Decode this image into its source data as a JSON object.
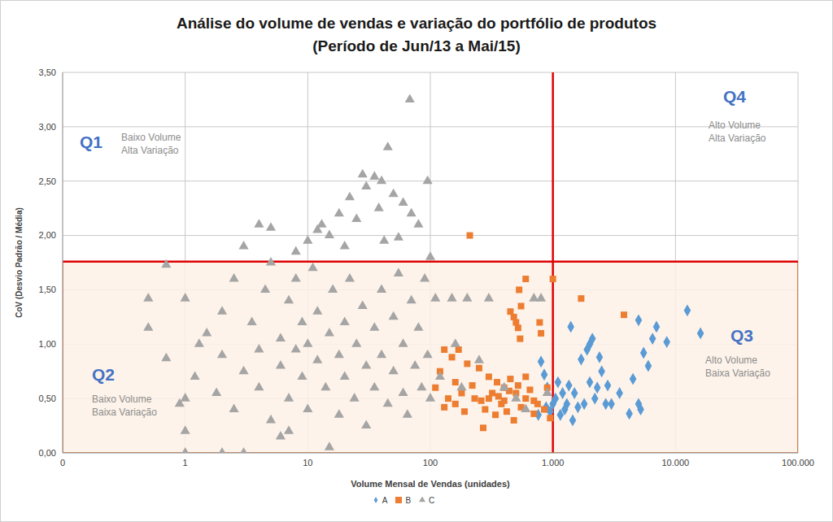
{
  "chart_data": {
    "type": "scatter",
    "title": [
      "Análise do volume de vendas e variação do portfólio de produtos",
      "(Período de Jun/13 a Mai/15)"
    ],
    "x_label": "Volume Mensal de Vendas (unidades)",
    "y_label": "CoV (Desvio Padrão / Média)",
    "log": "x",
    "grid": true,
    "legend": "bottom",
    "xlim": [
      0.1,
      100000
    ],
    "xticks": [
      {
        "value": 0.1,
        "label": "0"
      },
      1,
      10,
      100,
      {
        "value": 1000,
        "label": "1.000"
      },
      {
        "value": 10000,
        "label": "10.000"
      },
      {
        "value": 100000,
        "label": "100.000"
      }
    ],
    "ylim": [
      0,
      3.5
    ],
    "yticks": [
      {
        "value": 0,
        "label": "0,00"
      },
      {
        "value": 0.5,
        "label": "0,50"
      },
      {
        "value": 1,
        "label": "1,00"
      },
      {
        "value": 1.5,
        "label": "1,50"
      },
      {
        "value": 2,
        "label": "2,00"
      },
      {
        "value": 2.5,
        "label": "2,50"
      },
      {
        "value": 3,
        "label": "3,00"
      },
      {
        "value": 3.5,
        "label": "3,50"
      }
    ],
    "thresholds": {
      "x": 1000,
      "y": 1.76
    },
    "annotations": [
      {
        "label": "Q1",
        "text": [
          "Baixo Volume",
          "Alta Variação"
        ]
      },
      {
        "label": "Q2",
        "text": [
          "Baixo Volume",
          "Baixa Variação"
        ]
      },
      {
        "label": "Q3",
        "text": [
          "Alto Volume",
          "Baixa Variação"
        ]
      },
      {
        "label": "Q4",
        "text": [
          "Alto Volume",
          "Alta Variação"
        ]
      }
    ],
    "series": [
      {
        "name": "A",
        "color": "#5b9bd5",
        "marker": "diamond",
        "x": [
          16000,
          12500,
          5000,
          7000,
          6500,
          8500,
          5500,
          6000,
          4500,
          5000,
          5200,
          4200,
          2000,
          2100,
          1900,
          1400,
          1700,
          2400,
          2500,
          2800,
          2200,
          2700,
          1800,
          2000,
          800,
          850,
          900,
          1100,
          1200,
          1300,
          1500,
          1000,
          950,
          1150,
          1250,
          1600,
          3000,
          1050,
          880,
          1350,
          760,
          1450,
          2300,
          3500
        ],
        "y": [
          1.1,
          1.31,
          1.22,
          1.16,
          1.05,
          1.02,
          0.92,
          0.8,
          0.68,
          0.45,
          0.4,
          0.36,
          1.0,
          1.05,
          0.95,
          1.16,
          0.86,
          0.88,
          0.75,
          0.62,
          0.5,
          0.45,
          0.45,
          0.65,
          0.84,
          0.72,
          0.6,
          0.65,
          0.55,
          0.45,
          0.55,
          0.45,
          0.38,
          0.35,
          0.4,
          0.42,
          0.45,
          0.5,
          0.42,
          0.62,
          0.35,
          0.3,
          0.6,
          0.55
        ]
      },
      {
        "name": "B",
        "color": "#ed7d31",
        "marker": "square",
        "x": [
          210,
          1000,
          600,
          530,
          550,
          450,
          480,
          500,
          520,
          540,
          1700,
          3800,
          780,
          800,
          130,
          150,
          170,
          200,
          120,
          250,
          300,
          350,
          400,
          450,
          500,
          600,
          700,
          110,
          140,
          160,
          180,
          220,
          260,
          280,
          320,
          380,
          420,
          480,
          550,
          650,
          750,
          850,
          900,
          950,
          130,
          190,
          230,
          340,
          600,
          400,
          300,
          160,
          270,
          520,
          700,
          360,
          440
        ],
        "y": [
          2.0,
          1.6,
          1.6,
          1.5,
          1.35,
          1.3,
          1.25,
          1.2,
          1.15,
          1.05,
          1.42,
          1.27,
          1.2,
          1.1,
          0.95,
          0.88,
          0.95,
          0.82,
          0.75,
          0.78,
          0.7,
          0.65,
          0.6,
          0.68,
          0.55,
          0.5,
          0.48,
          0.6,
          0.5,
          0.45,
          0.55,
          0.62,
          0.48,
          0.4,
          0.55,
          0.45,
          0.38,
          0.3,
          0.42,
          0.58,
          0.45,
          0.4,
          0.6,
          0.32,
          0.42,
          0.38,
          0.5,
          0.35,
          0.7,
          0.48,
          0.5,
          0.65,
          0.23,
          0.62,
          0.36,
          0.52,
          0.57
        ]
      },
      {
        "name": "C",
        "color": "#a5a5a5",
        "marker": "triangle",
        "x": [
          68,
          45,
          28,
          35,
          40,
          95,
          30,
          50,
          22,
          60,
          38,
          70,
          18,
          80,
          4,
          5,
          25,
          12,
          15,
          55,
          10,
          8,
          20,
          42,
          100,
          0.5,
          0.5,
          0.7,
          0.7,
          1,
          1,
          1,
          1,
          0.9,
          1.2,
          1.5,
          1.8,
          2,
          2,
          2.5,
          2.5,
          3,
          3,
          3.5,
          4,
          4,
          4.5,
          5,
          5,
          6,
          6,
          7,
          7,
          8,
          8,
          9,
          9,
          10,
          10,
          11,
          12,
          12,
          14,
          15,
          15,
          16,
          18,
          18,
          20,
          20,
          22,
          24,
          25,
          28,
          30,
          30,
          35,
          35,
          40,
          40,
          45,
          50,
          50,
          55,
          60,
          60,
          65,
          70,
          75,
          80,
          85,
          90,
          95,
          100,
          110,
          120,
          150,
          160,
          180,
          200,
          250,
          300,
          400,
          500,
          600,
          700,
          800,
          900,
          6,
          2,
          1.3,
          3,
          13,
          7
        ],
        "y": [
          3.25,
          2.81,
          2.56,
          2.54,
          2.5,
          2.5,
          2.45,
          2.38,
          2.35,
          2.3,
          2.25,
          2.2,
          2.2,
          2.1,
          2.1,
          2.07,
          2.15,
          2.05,
          2.0,
          1.98,
          1.95,
          1.85,
          1.9,
          1.95,
          1.8,
          1.42,
          1.15,
          1.73,
          0.87,
          1.42,
          0.5,
          0.2,
          0,
          0.45,
          0.7,
          1.1,
          0.55,
          1.3,
          0.9,
          0.4,
          1.6,
          0,
          0.75,
          1.2,
          0.95,
          0.6,
          1.5,
          1.75,
          0.3,
          1.05,
          0.8,
          1.4,
          0.5,
          0.95,
          1.6,
          0.7,
          1.2,
          1.0,
          0.4,
          1.7,
          0.85,
          1.3,
          0.6,
          1.1,
          0.05,
          1.5,
          0.9,
          0.35,
          1.2,
          0.7,
          1.6,
          0.5,
          1.0,
          1.35,
          0.8,
          0.25,
          1.15,
          0.6,
          1.5,
          0.9,
          0.45,
          1.25,
          0.75,
          1.65,
          1.0,
          0.55,
          0.35,
          1.4,
          0.8,
          1.15,
          0.6,
          1.6,
          0.9,
          0.5,
          1.42,
          0.7,
          1.42,
          1.0,
          0.6,
          1.42,
          0.85,
          1.42,
          0.6,
          0.5,
          0.4,
          1.42,
          1.42,
          0.55,
          0.15,
          0,
          1.0,
          1.9,
          2.1,
          0.2
        ]
      }
    ]
  }
}
